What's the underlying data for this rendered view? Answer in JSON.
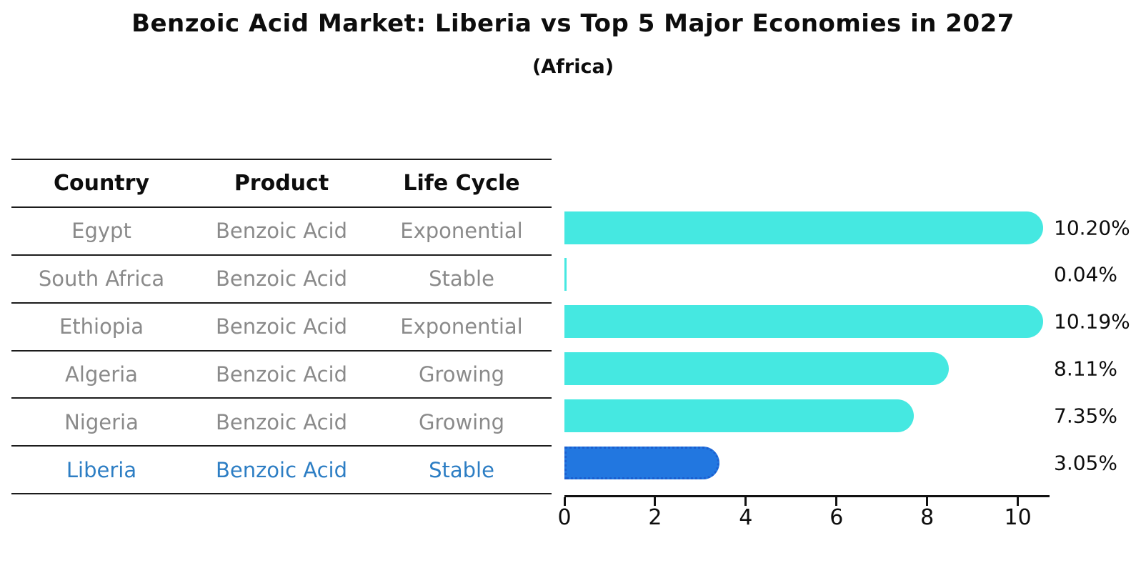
{
  "title": "Benzoic Acid Market: Liberia vs Top 5 Major Economies in 2027",
  "subtitle": "(Africa)",
  "table": {
    "headers": [
      "Country",
      "Product",
      "Life Cycle"
    ],
    "rows": [
      {
        "country": "Egypt",
        "product": "Benzoic Acid",
        "life_cycle": "Exponential",
        "highlight": false
      },
      {
        "country": "South Africa",
        "product": "Benzoic Acid",
        "life_cycle": "Stable",
        "highlight": false
      },
      {
        "country": "Ethiopia",
        "product": "Benzoic Acid",
        "life_cycle": "Exponential",
        "highlight": false
      },
      {
        "country": "Algeria",
        "product": "Benzoic Acid",
        "life_cycle": "Growing",
        "highlight": false
      },
      {
        "country": "Nigeria",
        "product": "Benzoic Acid",
        "life_cycle": "Growing",
        "highlight": false
      },
      {
        "country": "Liberia",
        "product": "Benzoic Acid",
        "life_cycle": "Stable",
        "highlight": true
      }
    ]
  },
  "chart_data": {
    "type": "bar",
    "orientation": "horizontal",
    "title": "Benzoic Acid Market: Liberia vs Top 5 Major Economies in 2027",
    "subtitle": "(Africa)",
    "categories": [
      "Egypt",
      "South Africa",
      "Ethiopia",
      "Algeria",
      "Nigeria",
      "Liberia"
    ],
    "values": [
      10.2,
      0.04,
      10.19,
      8.11,
      7.35,
      3.05
    ],
    "value_labels": [
      "10.20%",
      "0.04%",
      "10.19%",
      "8.11%",
      "7.35%",
      "3.05%"
    ],
    "xlabel": "",
    "ylabel": "",
    "xlim": [
      0,
      10.7
    ],
    "xticks": [
      0,
      2,
      4,
      6,
      8,
      10
    ],
    "grid": false,
    "legend_position": "none",
    "bar_color": "#45e8e1",
    "highlight_index": 5,
    "highlight_color": "#2277e0",
    "highlight_edge_color": "#1b5fd0",
    "highlight_text_color": "#2d7ec4"
  }
}
